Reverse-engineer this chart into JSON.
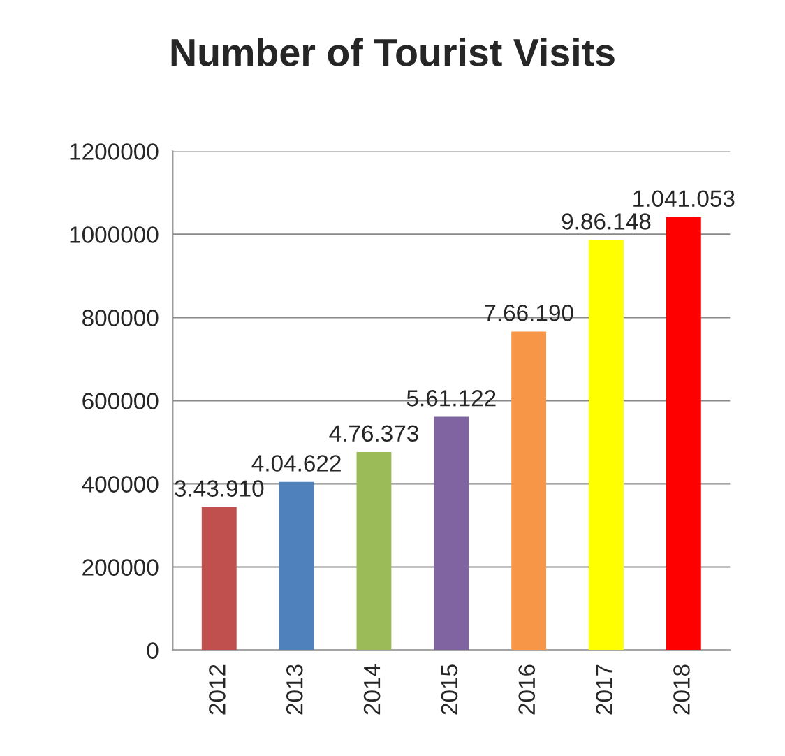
{
  "chart_data": {
    "type": "bar",
    "title": "Number of Tourist Visits",
    "categories": [
      "2012",
      "2013",
      "2014",
      "2015",
      "2016",
      "2017",
      "2018"
    ],
    "values": [
      343910,
      404622,
      476373,
      561122,
      766190,
      986148,
      1041053
    ],
    "value_labels": [
      "3.43.910",
      "4.04.622",
      "4.76.373",
      "5.61.122",
      "7.66.190",
      "9.86.148",
      "1.041.053"
    ],
    "colors": [
      "#c0504d",
      "#4f81bd",
      "#9bbb59",
      "#8064a2",
      "#f79646",
      "#ffff00",
      "#ff0000"
    ],
    "ylim": [
      0,
      1200000
    ],
    "yticks": [
      0,
      200000,
      400000,
      600000,
      800000,
      1000000,
      1200000
    ],
    "grid": "y"
  }
}
